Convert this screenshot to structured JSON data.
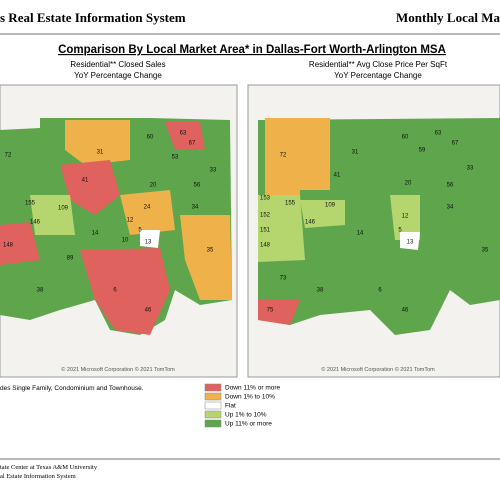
{
  "header": {
    "left": "s Real Estate Information System",
    "right": "Monthly Local Ma"
  },
  "title": "Comparison By Local Market Area* in Dallas-Fort Worth-Arlington MSA",
  "maps": [
    {
      "title_lines": [
        "Residential** Closed Sales",
        "YoY Percentage Change"
      ],
      "copyright": "© 2021 Microsoft Corporation © 2021 TomTom",
      "area_labels": [
        "72",
        "31",
        "60",
        "63",
        "67",
        "53",
        "41",
        "20",
        "56",
        "33",
        "155",
        "109",
        "34",
        "146",
        "24",
        "12",
        "14",
        "5",
        "10",
        "13",
        "148",
        "89",
        "38",
        "6",
        "35",
        "46"
      ]
    },
    {
      "title_lines": [
        "Residential** Avg Close Price Per SqFt",
        "YoY Percentage Change"
      ],
      "copyright": "© 2021 Microsoft Corporation © 2021 TomTom",
      "area_labels": [
        "72",
        "31",
        "60",
        "63",
        "67",
        "59",
        "41",
        "20",
        "56",
        "33",
        "153",
        "155",
        "109",
        "152",
        "146",
        "34",
        "12",
        "151",
        "148",
        "14",
        "5",
        "13",
        "73",
        "38",
        "35",
        "6",
        "75",
        "46"
      ]
    }
  ],
  "footnote": "des Single Family, Condominium and Townhouse.",
  "legend": [
    {
      "label": "Down 11% or more",
      "color": "#e0625e"
    },
    {
      "label": "Down 1% to 10%",
      "color": "#efb24a"
    },
    {
      "label": "Flat",
      "color": "#ffffff"
    },
    {
      "label": "Up 1% to 10%",
      "color": "#b5d66e"
    },
    {
      "label": "Up 11% or more",
      "color": "#5ea54c"
    }
  ],
  "footer": [
    "tate Center at Texas A&M University",
    "al Estate Information System"
  ]
}
